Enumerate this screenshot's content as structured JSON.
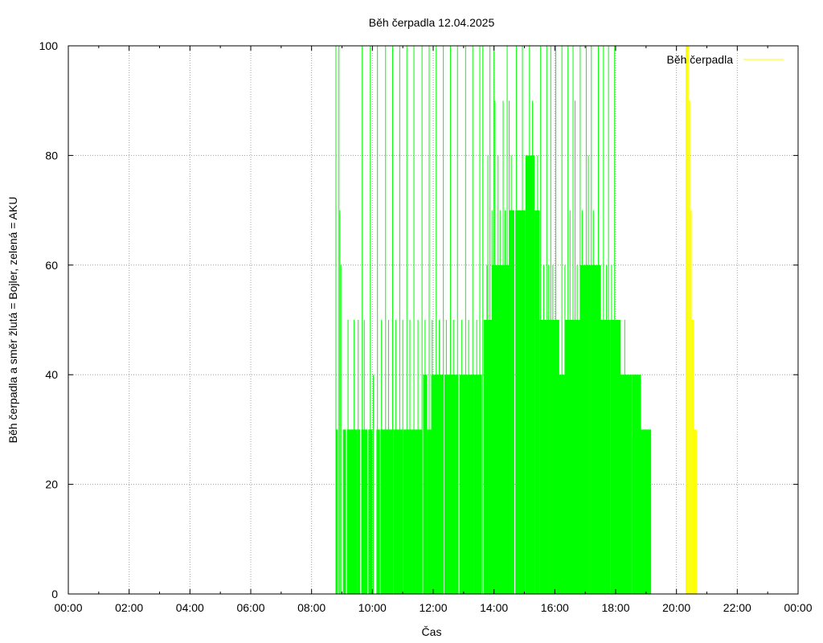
{
  "chart_data": {
    "type": "area",
    "title": "Běh čerpadla 12.04.2025",
    "xlabel": "Čas",
    "ylabel": "Běh čerpadla a směr žlutá = Bojler, zelená = AKU",
    "xlim": [
      0,
      1440
    ],
    "ylim": [
      0,
      100
    ],
    "x_tick_labels": [
      "00:00",
      "02:00",
      "04:00",
      "06:00",
      "08:00",
      "10:00",
      "12:00",
      "14:00",
      "16:00",
      "18:00",
      "20:00",
      "22:00",
      "00:00"
    ],
    "y_tick_labels": [
      "0",
      "20",
      "40",
      "60",
      "80",
      "100"
    ],
    "grid": true,
    "legend": {
      "position": "top-right",
      "entries": [
        {
          "label": "Běh čerpadla",
          "color": "#ffff00"
        }
      ]
    },
    "series": [
      {
        "color": "#00ff00",
        "x_unit": "minutes since 00:00",
        "base": [
          [
            528,
            532,
            30
          ],
          [
            542,
            548,
            30
          ],
          [
            550,
            560,
            30
          ],
          [
            560,
            570,
            30
          ],
          [
            570,
            576,
            30
          ],
          [
            578,
            590,
            30
          ],
          [
            592,
            600,
            30
          ],
          [
            608,
            615,
            30
          ],
          [
            616,
            640,
            30
          ],
          [
            641,
            660,
            30
          ],
          [
            661,
            690,
            30
          ],
          [
            690,
            698,
            30
          ],
          [
            700,
            708,
            40
          ],
          [
            708,
            716,
            30
          ],
          [
            716,
            740,
            40
          ],
          [
            742,
            770,
            40
          ],
          [
            772,
            800,
            40
          ],
          [
            800,
            816,
            40
          ],
          [
            820,
            836,
            50
          ],
          [
            836,
            854,
            60
          ],
          [
            854,
            870,
            60
          ],
          [
            870,
            880,
            70
          ],
          [
            882,
            902,
            70
          ],
          [
            902,
            920,
            80
          ],
          [
            920,
            930,
            70
          ],
          [
            930,
            950,
            50
          ],
          [
            950,
            968,
            50
          ],
          [
            968,
            980,
            40
          ],
          [
            980,
            990,
            50
          ],
          [
            990,
            1010,
            50
          ],
          [
            1010,
            1030,
            60
          ],
          [
            1030,
            1050,
            60
          ],
          [
            1050,
            1070,
            50
          ],
          [
            1070,
            1090,
            50
          ],
          [
            1090,
            1112,
            40
          ],
          [
            1112,
            1130,
            40
          ],
          [
            1130,
            1150,
            30
          ]
        ],
        "spikes": [
          [
            528,
            100
          ],
          [
            534,
            100
          ],
          [
            536,
            70
          ],
          [
            538,
            60
          ],
          [
            552,
            50
          ],
          [
            560,
            30
          ],
          [
            564,
            50
          ],
          [
            572,
            50
          ],
          [
            580,
            100
          ],
          [
            584,
            50
          ],
          [
            596,
            100
          ],
          [
            602,
            40
          ],
          [
            610,
            100
          ],
          [
            618,
            50
          ],
          [
            626,
            100
          ],
          [
            632,
            50
          ],
          [
            640,
            100
          ],
          [
            646,
            50
          ],
          [
            654,
            100
          ],
          [
            660,
            50
          ],
          [
            668,
            100
          ],
          [
            674,
            50
          ],
          [
            682,
            100
          ],
          [
            690,
            50
          ],
          [
            698,
            100
          ],
          [
            704,
            50
          ],
          [
            712,
            100
          ],
          [
            718,
            50
          ],
          [
            726,
            100
          ],
          [
            732,
            50
          ],
          [
            740,
            100
          ],
          [
            746,
            50
          ],
          [
            754,
            100
          ],
          [
            760,
            50
          ],
          [
            768,
            100
          ],
          [
            776,
            50
          ],
          [
            784,
            100
          ],
          [
            790,
            50
          ],
          [
            798,
            100
          ],
          [
            806,
            50
          ],
          [
            812,
            100
          ],
          [
            818,
            100
          ],
          [
            826,
            60
          ],
          [
            828,
            80
          ],
          [
            832,
            100
          ],
          [
            836,
            70
          ],
          [
            840,
            100
          ],
          [
            842,
            90
          ],
          [
            848,
            80
          ],
          [
            852,
            70
          ],
          [
            858,
            90
          ],
          [
            862,
            70
          ],
          [
            866,
            100
          ],
          [
            870,
            90
          ],
          [
            874,
            80
          ],
          [
            878,
            70
          ],
          [
            884,
            100
          ],
          [
            890,
            70
          ],
          [
            896,
            100
          ],
          [
            904,
            80
          ],
          [
            910,
            100
          ],
          [
            916,
            90
          ],
          [
            922,
            60
          ],
          [
            926,
            80
          ],
          [
            932,
            100
          ],
          [
            938,
            60
          ],
          [
            944,
            100
          ],
          [
            948,
            60
          ],
          [
            952,
            100
          ],
          [
            956,
            60
          ],
          [
            962,
            100
          ],
          [
            968,
            50
          ],
          [
            974,
            100
          ],
          [
            980,
            60
          ],
          [
            986,
            100
          ],
          [
            990,
            70
          ],
          [
            996,
            100
          ],
          [
            1000,
            90
          ],
          [
            1004,
            60
          ],
          [
            1010,
            100
          ],
          [
            1014,
            70
          ],
          [
            1018,
            60
          ],
          [
            1022,
            100
          ],
          [
            1026,
            80
          ],
          [
            1032,
            100
          ],
          [
            1036,
            70
          ],
          [
            1040,
            60
          ],
          [
            1046,
            100
          ],
          [
            1050,
            60
          ],
          [
            1056,
            100
          ],
          [
            1062,
            60
          ],
          [
            1066,
            100
          ],
          [
            1072,
            60
          ],
          [
            1078,
            100
          ],
          [
            1084,
            50
          ],
          [
            1090,
            40
          ],
          [
            1098,
            50
          ],
          [
            1104,
            40
          ],
          [
            1110,
            40
          ],
          [
            1120,
            40
          ]
        ]
      },
      {
        "color": "#ffff00",
        "x_unit": "minutes since 00:00",
        "base": [
          [
            1218,
            1224,
            100
          ],
          [
            1224,
            1227,
            90
          ],
          [
            1227,
            1230,
            70
          ],
          [
            1230,
            1234,
            50
          ],
          [
            1234,
            1240,
            30
          ]
        ],
        "spikes": []
      }
    ]
  }
}
